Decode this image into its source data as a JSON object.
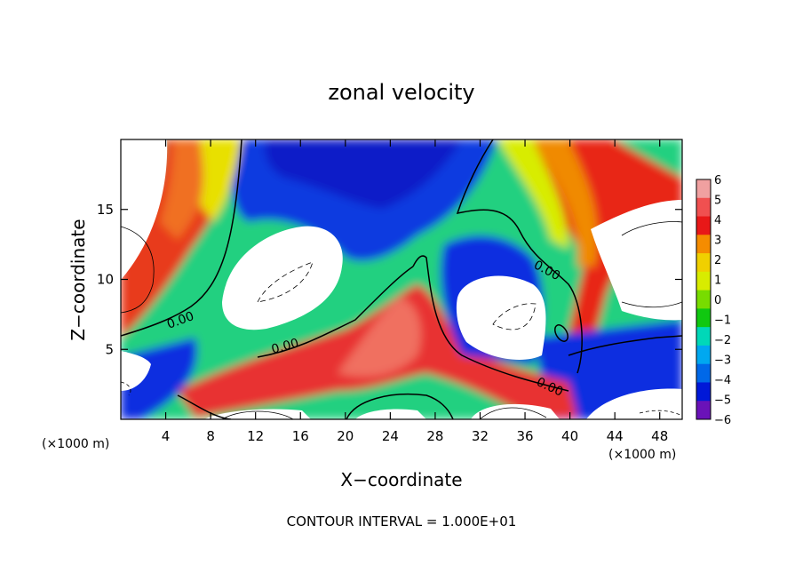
{
  "chart_data": {
    "type": "heatmap",
    "title": "zonal velocity",
    "xlabel": "X−coordinate",
    "ylabel": "Z−coordinate",
    "x_unit": "(×1000 m)",
    "x_unit_right": "(×1000 m)",
    "x_ticks": [
      "4",
      "8",
      "12",
      "16",
      "20",
      "24",
      "28",
      "32",
      "36",
      "40",
      "44",
      "48"
    ],
    "y_ticks": [
      "5",
      "10",
      "15"
    ],
    "xlim": [
      0,
      50
    ],
    "ylim": [
      0,
      20
    ],
    "colorbar": {
      "ticks": [
        "6",
        "5",
        "4",
        "3",
        "2",
        "1",
        "0",
        "−1",
        "−2",
        "−3",
        "−4",
        "−5",
        "−6"
      ],
      "range": [
        -6,
        6
      ],
      "colors": [
        "#f0a0a0",
        "#f05050",
        "#e81818",
        "#f58c00",
        "#f0d000",
        "#d8ec00",
        "#78dc00",
        "#10c810",
        "#00d8b8",
        "#00a8f0",
        "#0068e8",
        "#0018d8",
        "#6a12b8"
      ]
    },
    "contour_labels": [
      "0.00",
      "0.00",
      "0.00",
      "0.00"
    ],
    "contour_interval_text": "CONTOUR INTERVAL = 1.000E+01"
  }
}
